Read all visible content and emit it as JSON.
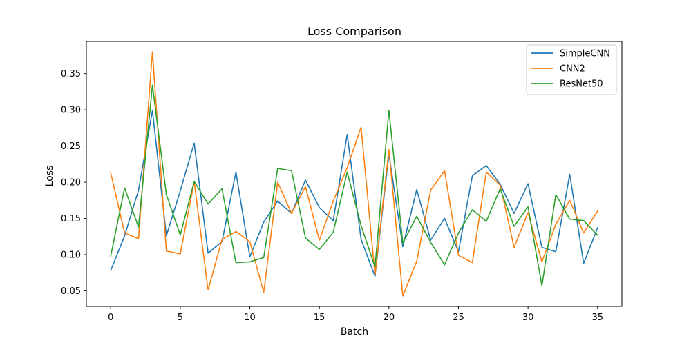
{
  "chart_data": {
    "type": "line",
    "title": "Loss Comparison",
    "xlabel": "Batch",
    "ylabel": "Loss",
    "xlim": [
      -1.75,
      36.75
    ],
    "ylim": [
      0.0285,
      0.3945
    ],
    "xticks": [
      0,
      5,
      10,
      15,
      20,
      25,
      30,
      35
    ],
    "yticks": [
      0.05,
      0.1,
      0.15,
      0.2,
      0.25,
      0.3,
      0.35
    ],
    "ytick_labels": [
      "0.05",
      "0.10",
      "0.15",
      "0.20",
      "0.25",
      "0.30",
      "0.35"
    ],
    "legend_position": "top-right",
    "grid": false,
    "x": [
      0,
      1,
      2,
      3,
      4,
      5,
      6,
      7,
      8,
      9,
      10,
      11,
      12,
      13,
      14,
      15,
      16,
      17,
      18,
      19,
      20,
      21,
      22,
      23,
      24,
      25,
      26,
      27,
      28,
      29,
      30,
      31,
      32,
      33,
      34,
      35
    ],
    "series": [
      {
        "name": "SimpleCNN",
        "color": "#1f77b4",
        "values": [
          0.078,
          0.126,
          0.189,
          0.299,
          0.126,
          0.188,
          0.254,
          0.102,
          0.118,
          0.214,
          0.097,
          0.145,
          0.174,
          0.157,
          0.203,
          0.165,
          0.147,
          0.266,
          0.121,
          0.07,
          0.239,
          0.111,
          0.19,
          0.12,
          0.15,
          0.104,
          0.209,
          0.223,
          0.197,
          0.157,
          0.198,
          0.11,
          0.104,
          0.211,
          0.088,
          0.137
        ]
      },
      {
        "name": "CNN2",
        "color": "#ff7f0e",
        "values": [
          0.213,
          0.13,
          0.122,
          0.38,
          0.105,
          0.101,
          0.201,
          0.051,
          0.121,
          0.132,
          0.118,
          0.048,
          0.2,
          0.157,
          0.194,
          0.12,
          0.174,
          0.22,
          0.276,
          0.072,
          0.245,
          0.043,
          0.091,
          0.189,
          0.216,
          0.099,
          0.089,
          0.214,
          0.196,
          0.11,
          0.158,
          0.09,
          0.142,
          0.175,
          0.13,
          0.16
        ]
      },
      {
        "name": "ResNet50",
        "color": "#2ca02c",
        "values": [
          0.098,
          0.192,
          0.138,
          0.334,
          0.183,
          0.127,
          0.201,
          0.17,
          0.191,
          0.089,
          0.09,
          0.096,
          0.219,
          0.216,
          0.123,
          0.107,
          0.131,
          0.214,
          0.14,
          0.083,
          0.299,
          0.116,
          0.153,
          0.117,
          0.086,
          0.13,
          0.162,
          0.146,
          0.191,
          0.139,
          0.166,
          0.057,
          0.183,
          0.149,
          0.147,
          0.127
        ]
      }
    ]
  }
}
